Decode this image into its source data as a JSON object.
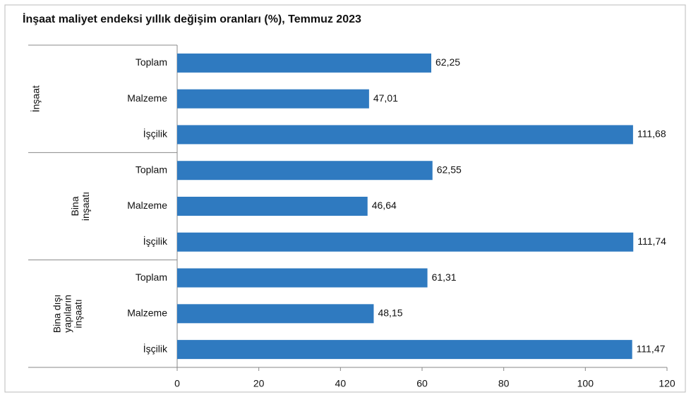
{
  "chart_data": {
    "type": "bar",
    "orientation": "horizontal",
    "title": "İnşaat maliyet endeksi yıllık değişim oranları (%), Temmuz 2023",
    "groups": [
      [
        "İnşaat"
      ],
      [
        "Bina",
        "inşaatı"
      ],
      [
        "Bina dışı",
        "yapıların",
        "inşaatı"
      ]
    ],
    "categories": [
      "Toplam",
      "Malzeme",
      "İşçilik",
      "Toplam",
      "Malzeme",
      "İşçilik",
      "Toplam",
      "Malzeme",
      "İşçilik"
    ],
    "values": [
      62.25,
      47.01,
      111.68,
      62.55,
      46.64,
      111.74,
      61.31,
      48.15,
      111.47
    ],
    "value_labels": [
      "62,25",
      "47,01",
      "111,68",
      "62,55",
      "46,64",
      "111,74",
      "61,31",
      "48,15",
      "111,47"
    ],
    "color": "#2f7ac0",
    "xlim": [
      0,
      120
    ],
    "xticks": [
      0,
      20,
      40,
      60,
      80,
      100,
      120
    ]
  }
}
